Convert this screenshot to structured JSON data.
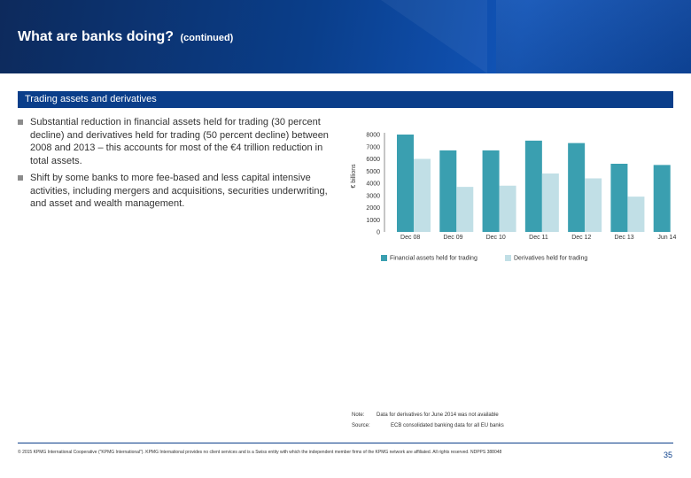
{
  "header": {
    "title": "What are banks doing?",
    "subtitle": "(continued)"
  },
  "section": {
    "title": "Trading assets and derivatives"
  },
  "bullets": [
    "Substantial reduction in financial assets held for trading (30 percent decline) and derivatives held for trading (50 percent decline) between 2008 and 2013 – this accounts for most of the €4 trillion reduction in total assets.",
    "Shift by some banks to more fee-based and less capital intensive activities, including mergers and acquisitions, securities underwriting, and asset and wealth management."
  ],
  "chart_data": {
    "type": "bar",
    "ylabel": "€ billions",
    "ylim": [
      0,
      8000
    ],
    "yticks": [
      0,
      1000,
      2000,
      3000,
      4000,
      5000,
      6000,
      7000,
      8000
    ],
    "categories": [
      "Dec 08",
      "Dec 09",
      "Dec 10",
      "Dec 11",
      "Dec 12",
      "Dec 13",
      "Jun 14"
    ],
    "series": [
      {
        "name": "Financial assets held for trading",
        "color": "#3a9fb0",
        "values": [
          8000,
          6700,
          6700,
          7500,
          7300,
          5600,
          5500
        ]
      },
      {
        "name": "Derivatives held for trading",
        "color": "#c1dfe6",
        "values": [
          6000,
          3700,
          3800,
          4800,
          4400,
          2900,
          null
        ]
      }
    ],
    "grid": false,
    "legend": "bottom"
  },
  "note": {
    "label": "Note:",
    "text": "Data for derivatives for June 2014 was not available"
  },
  "source": {
    "label": "Source:",
    "text": "ECB consolidated banking data for all EU banks"
  },
  "footer": {
    "text": "© 2015 KPMG International Cooperative (\"KPMG International\"). KPMG International provides no client services and is a Swiss entity with which the independent member firms of the KPMG network are affiliated. All rights reserved. NDPPS 388048",
    "page": "35"
  }
}
